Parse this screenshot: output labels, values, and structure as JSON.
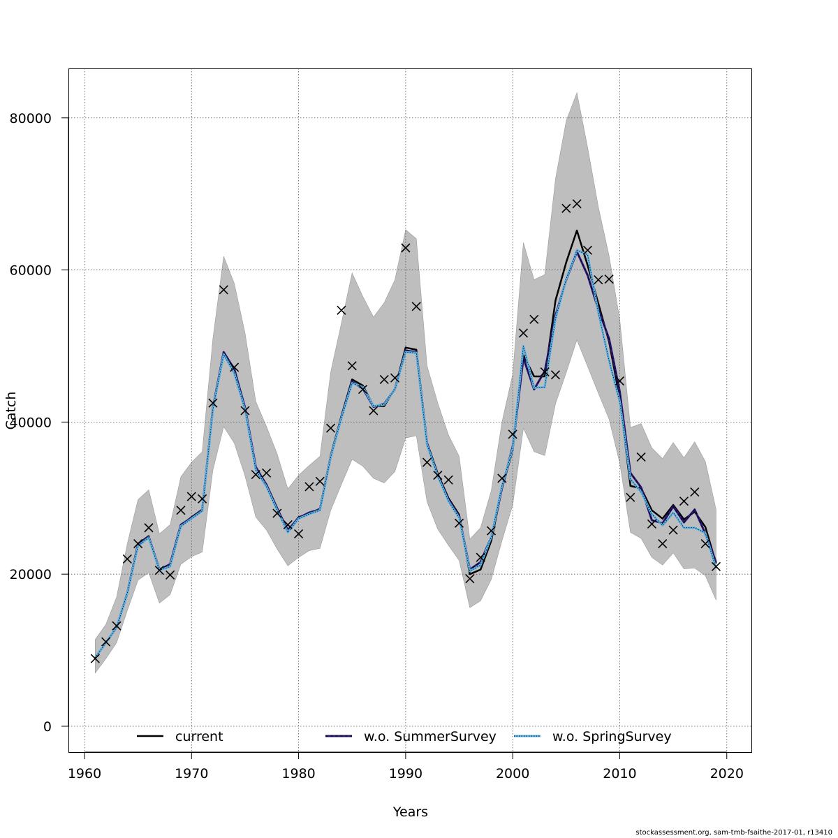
{
  "chart_data": {
    "type": "line",
    "xlabel": "Years",
    "ylabel": "Catch",
    "xlim": [
      1958.5,
      2022.3
    ],
    "ylim": [
      -3400,
      86500
    ],
    "x_ticks": [
      1960,
      1970,
      1980,
      1990,
      2000,
      2010,
      2020
    ],
    "y_ticks": [
      0,
      20000,
      40000,
      60000,
      80000
    ],
    "grid": true,
    "legend_position": "bottom",
    "colors": {
      "band": "#bebebe",
      "current": "#000000",
      "summer": "#2b1a7a",
      "spring": "#5ab4e8",
      "observed": "#000000"
    },
    "x": [
      1961,
      1962,
      1963,
      1964,
      1965,
      1966,
      1967,
      1968,
      1969,
      1970,
      1971,
      1972,
      1973,
      1974,
      1975,
      1976,
      1977,
      1978,
      1979,
      1980,
      1981,
      1982,
      1983,
      1984,
      1985,
      1986,
      1987,
      1988,
      1989,
      1990,
      1991,
      1992,
      1993,
      1994,
      1995,
      1996,
      1997,
      1998,
      1999,
      2000,
      2001,
      2002,
      2003,
      2004,
      2005,
      2006,
      2007,
      2008,
      2009,
      2010,
      2011,
      2012,
      2013,
      2014,
      2015,
      2016,
      2017,
      2018,
      2019
    ],
    "band_upper": [
      11400,
      13400,
      17000,
      24000,
      29800,
      31100,
      25300,
      26500,
      32800,
      34700,
      36100,
      51000,
      61800,
      58200,
      51700,
      42700,
      39400,
      35800,
      31200,
      33000,
      34300,
      35500,
      46600,
      53000,
      59600,
      56500,
      53800,
      55700,
      58700,
      65300,
      64100,
      47400,
      42500,
      38300,
      35500,
      24600,
      26100,
      31000,
      40000,
      46300,
      63600,
      58700,
      59400,
      72000,
      79600,
      83300,
      76100,
      68300,
      61900,
      53500,
      39300,
      39800,
      36600,
      35200,
      37300,
      35300,
      37400,
      34800,
      28500
    ],
    "band_lower": [
      7000,
      8900,
      11000,
      15200,
      19200,
      20200,
      16200,
      17300,
      21300,
      22300,
      22900,
      33700,
      39400,
      37200,
      32900,
      27500,
      25800,
      23300,
      21100,
      22200,
      23100,
      23400,
      28400,
      31800,
      35100,
      34200,
      32600,
      32000,
      33500,
      37900,
      38200,
      29500,
      25900,
      23800,
      21800,
      15600,
      16500,
      19300,
      24400,
      29100,
      39200,
      36100,
      35600,
      42400,
      46500,
      50800,
      47300,
      43800,
      40400,
      34600,
      25500,
      24700,
      22200,
      21200,
      22800,
      20700,
      20800,
      19800,
      16600
    ],
    "series": [
      {
        "name": "current",
        "values": [
          9000,
          11000,
          13000,
          17600,
          24000,
          25000,
          20600,
          21200,
          26400,
          27500,
          28500,
          42000,
          49200,
          47000,
          41800,
          34000,
          31800,
          28700,
          25700,
          27500,
          28000,
          28600,
          35600,
          40800,
          45600,
          44800,
          42100,
          42100,
          44400,
          49800,
          49500,
          37300,
          33200,
          30000,
          27800,
          20000,
          20600,
          24400,
          31300,
          36300,
          48800,
          46000,
          46000,
          56000,
          61000,
          65200,
          60600,
          55600,
          50600,
          43100,
          31600,
          31300,
          28400,
          27300,
          29100,
          27200,
          28200,
          26200,
          21400
        ]
      },
      {
        "name": "w.o. SummerSurvey",
        "values": [
          9000,
          11000,
          13000,
          17500,
          23900,
          24900,
          20600,
          21300,
          26500,
          27400,
          28400,
          41800,
          49200,
          46900,
          41900,
          34100,
          31700,
          28600,
          25800,
          27400,
          28100,
          28500,
          35400,
          40600,
          45300,
          44400,
          42000,
          42400,
          44300,
          49400,
          49200,
          37200,
          32900,
          29800,
          27600,
          20600,
          21600,
          24900,
          31300,
          36800,
          48400,
          44300,
          46700,
          54000,
          58700,
          62400,
          59300,
          54800,
          51000,
          44000,
          33300,
          31400,
          27100,
          26700,
          28900,
          26800,
          28500,
          25300,
          21600
        ]
      },
      {
        "name": "w.o. SpringSurvey",
        "values": [
          9000,
          11000,
          13000,
          17500,
          23700,
          24800,
          20500,
          21000,
          26300,
          27300,
          28300,
          41700,
          48900,
          46400,
          41600,
          33700,
          31500,
          28400,
          25500,
          27300,
          27900,
          28400,
          35400,
          40500,
          45100,
          44600,
          42100,
          42300,
          44300,
          49200,
          49100,
          37000,
          32900,
          29600,
          27400,
          20400,
          21200,
          24900,
          31600,
          36500,
          50000,
          44500,
          44600,
          53600,
          58800,
          62600,
          62000,
          54400,
          48100,
          42700,
          32500,
          30800,
          27900,
          26400,
          28100,
          26100,
          26100,
          25400,
          20800
        ]
      }
    ],
    "observed": [
      {
        "x": 1961,
        "y": 8900
      },
      {
        "x": 1962,
        "y": 11100
      },
      {
        "x": 1963,
        "y": 13200
      },
      {
        "x": 1964,
        "y": 22000
      },
      {
        "x": 1965,
        "y": 24000
      },
      {
        "x": 1966,
        "y": 26100
      },
      {
        "x": 1967,
        "y": 20500
      },
      {
        "x": 1968,
        "y": 19900
      },
      {
        "x": 1969,
        "y": 28400
      },
      {
        "x": 1970,
        "y": 30200
      },
      {
        "x": 1971,
        "y": 29900
      },
      {
        "x": 1972,
        "y": 42500
      },
      {
        "x": 1973,
        "y": 57400
      },
      {
        "x": 1974,
        "y": 47200
      },
      {
        "x": 1975,
        "y": 41500
      },
      {
        "x": 1976,
        "y": 33100
      },
      {
        "x": 1977,
        "y": 33300
      },
      {
        "x": 1978,
        "y": 28000
      },
      {
        "x": 1979,
        "y": 26500
      },
      {
        "x": 1980,
        "y": 25300
      },
      {
        "x": 1981,
        "y": 31500
      },
      {
        "x": 1982,
        "y": 32200
      },
      {
        "x": 1983,
        "y": 39200
      },
      {
        "x": 1984,
        "y": 54700
      },
      {
        "x": 1985,
        "y": 47400
      },
      {
        "x": 1986,
        "y": 44300
      },
      {
        "x": 1987,
        "y": 41500
      },
      {
        "x": 1988,
        "y": 45600
      },
      {
        "x": 1989,
        "y": 45800
      },
      {
        "x": 1990,
        "y": 62900
      },
      {
        "x": 1991,
        "y": 55200
      },
      {
        "x": 1992,
        "y": 34700
      },
      {
        "x": 1993,
        "y": 33000
      },
      {
        "x": 1994,
        "y": 32400
      },
      {
        "x": 1995,
        "y": 26700
      },
      {
        "x": 1996,
        "y": 19400
      },
      {
        "x": 1997,
        "y": 22200
      },
      {
        "x": 1998,
        "y": 25700
      },
      {
        "x": 1999,
        "y": 32600
      },
      {
        "x": 2000,
        "y": 38400
      },
      {
        "x": 2001,
        "y": 51700
      },
      {
        "x": 2002,
        "y": 53500
      },
      {
        "x": 2003,
        "y": 46600
      },
      {
        "x": 2004,
        "y": 46200
      },
      {
        "x": 2005,
        "y": 68100
      },
      {
        "x": 2006,
        "y": 68700
      },
      {
        "x": 2007,
        "y": 62600
      },
      {
        "x": 2008,
        "y": 58700
      },
      {
        "x": 2009,
        "y": 58800
      },
      {
        "x": 2010,
        "y": 45400
      },
      {
        "x": 2011,
        "y": 30100
      },
      {
        "x": 2012,
        "y": 35400
      },
      {
        "x": 2013,
        "y": 26600
      },
      {
        "x": 2014,
        "y": 24000
      },
      {
        "x": 2015,
        "y": 25800
      },
      {
        "x": 2016,
        "y": 29600
      },
      {
        "x": 2017,
        "y": 30800
      },
      {
        "x": 2018,
        "y": 24000
      },
      {
        "x": 2019,
        "y": 21000
      }
    ]
  },
  "credit": "stockassessment.org, sam-tmb-fsaithe-2017-01, r13410"
}
